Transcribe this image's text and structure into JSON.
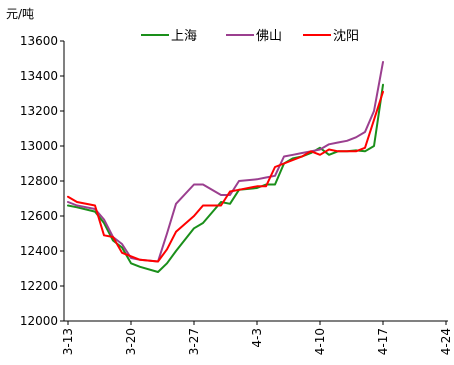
{
  "chart_data": {
    "type": "line",
    "title": "",
    "xlabel": "",
    "ylabel": "元/吨",
    "ylim": [
      12000,
      13600
    ],
    "y_ticks": [
      12000,
      12200,
      12400,
      12600,
      12800,
      13000,
      13200,
      13400,
      13600
    ],
    "x_tick_labels": [
      "3-13",
      "3-20",
      "3-27",
      "4-3",
      "4-10",
      "4-17",
      "4-24"
    ],
    "grid": false,
    "legend_position": "top-center",
    "series": [
      {
        "name": "上海",
        "color": "#1a8f1a",
        "values": [
          {
            "x": "3-13",
            "y": 12660
          },
          {
            "x": "3-14",
            "y": 12650
          },
          {
            "x": "3-16",
            "y": 12625
          },
          {
            "x": "3-17",
            "y": 12560
          },
          {
            "x": "3-18",
            "y": 12460
          },
          {
            "x": "3-19",
            "y": 12420
          },
          {
            "x": "3-20",
            "y": 12330
          },
          {
            "x": "3-21",
            "y": 12310
          },
          {
            "x": "3-23",
            "y": 12280
          },
          {
            "x": "3-24",
            "y": 12330
          },
          {
            "x": "3-25",
            "y": 12400
          },
          {
            "x": "3-27",
            "y": 12530
          },
          {
            "x": "3-28",
            "y": 12560
          },
          {
            "x": "3-30",
            "y": 12680
          },
          {
            "x": "3-31",
            "y": 12670
          },
          {
            "x": "4-1",
            "y": 12750
          },
          {
            "x": "4-3",
            "y": 12760
          },
          {
            "x": "4-4",
            "y": 12780
          },
          {
            "x": "4-5",
            "y": 12780
          },
          {
            "x": "4-6",
            "y": 12900
          },
          {
            "x": "4-7",
            "y": 12930
          },
          {
            "x": "4-8",
            "y": 12940
          },
          {
            "x": "4-9",
            "y": 12960
          },
          {
            "x": "4-10",
            "y": 12990
          },
          {
            "x": "4-11",
            "y": 12950
          },
          {
            "x": "4-12",
            "y": 12970
          },
          {
            "x": "4-13",
            "y": 12970
          },
          {
            "x": "4-14",
            "y": 12975
          },
          {
            "x": "4-15",
            "y": 12970
          },
          {
            "x": "4-16",
            "y": 13000
          },
          {
            "x": "4-17",
            "y": 13350
          }
        ]
      },
      {
        "name": "佛山",
        "color": "#9b3f8f",
        "values": [
          {
            "x": "3-13",
            "y": 12680
          },
          {
            "x": "3-14",
            "y": 12660
          },
          {
            "x": "3-16",
            "y": 12640
          },
          {
            "x": "3-17",
            "y": 12580
          },
          {
            "x": "3-18",
            "y": 12480
          },
          {
            "x": "3-19",
            "y": 12440
          },
          {
            "x": "3-20",
            "y": 12360
          },
          {
            "x": "3-21",
            "y": 12350
          },
          {
            "x": "3-23",
            "y": 12340
          },
          {
            "x": "3-24",
            "y": 12500
          },
          {
            "x": "3-25",
            "y": 12670
          },
          {
            "x": "3-27",
            "y": 12780
          },
          {
            "x": "3-28",
            "y": 12780
          },
          {
            "x": "3-30",
            "y": 12720
          },
          {
            "x": "3-31",
            "y": 12720
          },
          {
            "x": "4-1",
            "y": 12800
          },
          {
            "x": "4-3",
            "y": 12810
          },
          {
            "x": "4-4",
            "y": 12820
          },
          {
            "x": "4-5",
            "y": 12830
          },
          {
            "x": "4-6",
            "y": 12940
          },
          {
            "x": "4-7",
            "y": 12950
          },
          {
            "x": "4-8",
            "y": 12960
          },
          {
            "x": "4-9",
            "y": 12970
          },
          {
            "x": "4-10",
            "y": 12980
          },
          {
            "x": "4-11",
            "y": 13010
          },
          {
            "x": "4-12",
            "y": 13020
          },
          {
            "x": "4-13",
            "y": 13030
          },
          {
            "x": "4-14",
            "y": 13050
          },
          {
            "x": "4-15",
            "y": 13080
          },
          {
            "x": "4-16",
            "y": 13200
          },
          {
            "x": "4-17",
            "y": 13480
          }
        ]
      },
      {
        "name": "沈阳",
        "color": "#ff0000",
        "values": [
          {
            "x": "3-13",
            "y": 12710
          },
          {
            "x": "3-14",
            "y": 12680
          },
          {
            "x": "3-16",
            "y": 12660
          },
          {
            "x": "3-17",
            "y": 12490
          },
          {
            "x": "3-18",
            "y": 12480
          },
          {
            "x": "3-19",
            "y": 12390
          },
          {
            "x": "3-20",
            "y": 12370
          },
          {
            "x": "3-21",
            "y": 12350
          },
          {
            "x": "3-23",
            "y": 12340
          },
          {
            "x": "3-24",
            "y": 12410
          },
          {
            "x": "3-25",
            "y": 12510
          },
          {
            "x": "3-27",
            "y": 12600
          },
          {
            "x": "3-28",
            "y": 12660
          },
          {
            "x": "3-30",
            "y": 12660
          },
          {
            "x": "3-31",
            "y": 12740
          },
          {
            "x": "4-1",
            "y": 12750
          },
          {
            "x": "4-3",
            "y": 12770
          },
          {
            "x": "4-4",
            "y": 12770
          },
          {
            "x": "4-5",
            "y": 12880
          },
          {
            "x": "4-6",
            "y": 12900
          },
          {
            "x": "4-7",
            "y": 12920
          },
          {
            "x": "4-8",
            "y": 12940
          },
          {
            "x": "4-9",
            "y": 12970
          },
          {
            "x": "4-10",
            "y": 12950
          },
          {
            "x": "4-11",
            "y": 12980
          },
          {
            "x": "4-12",
            "y": 12970
          },
          {
            "x": "4-13",
            "y": 12970
          },
          {
            "x": "4-14",
            "y": 12970
          },
          {
            "x": "4-15",
            "y": 12990
          },
          {
            "x": "4-16",
            "y": 13150
          },
          {
            "x": "4-17",
            "y": 13310
          }
        ]
      }
    ]
  }
}
